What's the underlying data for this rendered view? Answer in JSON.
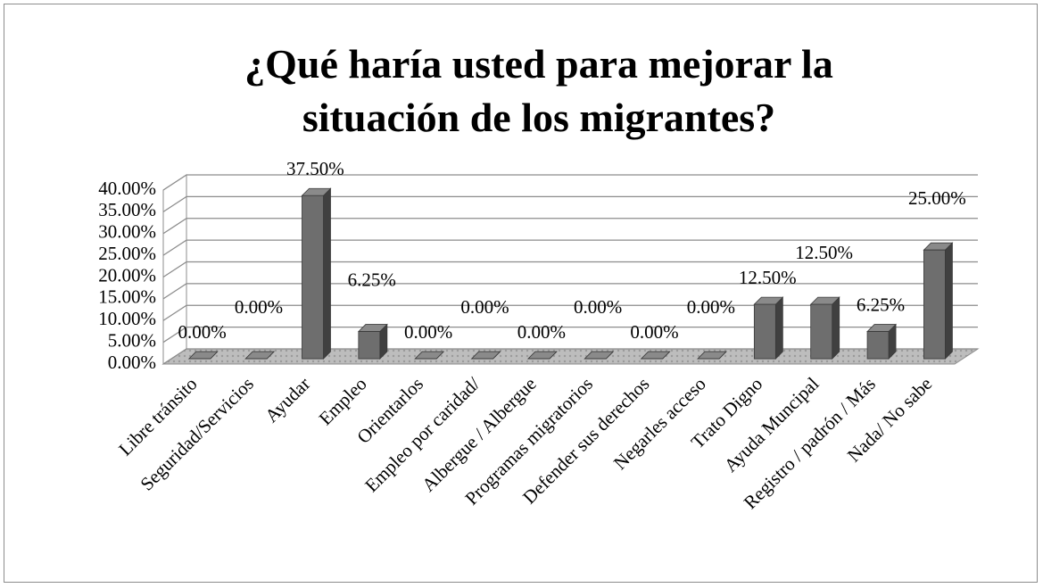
{
  "chart_data": {
    "type": "bar3d",
    "title": "¿Qué haría usted para mejorar la situación de los migrantes?",
    "categories": [
      "Libre tránsito",
      "Seguridad/Servicios",
      "Ayudar",
      "Empleo",
      "Orientarlos",
      "Empleo por caridad/",
      "Albergue / Albergue",
      "Programas migratorios",
      "Defender sus derechos",
      "Negarles acceso",
      "Trato Digno",
      "Ayuda Muncipal",
      "Registro / padrón / Más",
      "Nada/ No sabe"
    ],
    "values": [
      0,
      0,
      37.5,
      6.25,
      0,
      0,
      0,
      0,
      0,
      0,
      12.5,
      12.5,
      6.25,
      25
    ],
    "value_labels": [
      "0.00%",
      "0.00%",
      "37.50%",
      "6.25%",
      "0.00%",
      "0.00%",
      "0.00%",
      "0.00%",
      "0.00%",
      "0.00%",
      "12.50%",
      "12.50%",
      "6.25%",
      "25.00%"
    ],
    "color": "#6e6e6e",
    "ylim": [
      0,
      40
    ],
    "yticks": [
      {
        "value": 0,
        "label": "0.00%"
      },
      {
        "value": 5,
        "label": "5.00%"
      },
      {
        "value": 10,
        "label": "10.00%"
      },
      {
        "value": 15,
        "label": "15.00%"
      },
      {
        "value": 20,
        "label": "20.00%"
      },
      {
        "value": 25,
        "label": "25.00%"
      },
      {
        "value": 30,
        "label": "30.00%"
      },
      {
        "value": 35,
        "label": "35.00%"
      },
      {
        "value": 40,
        "label": "40.00%"
      }
    ],
    "grid": true
  }
}
